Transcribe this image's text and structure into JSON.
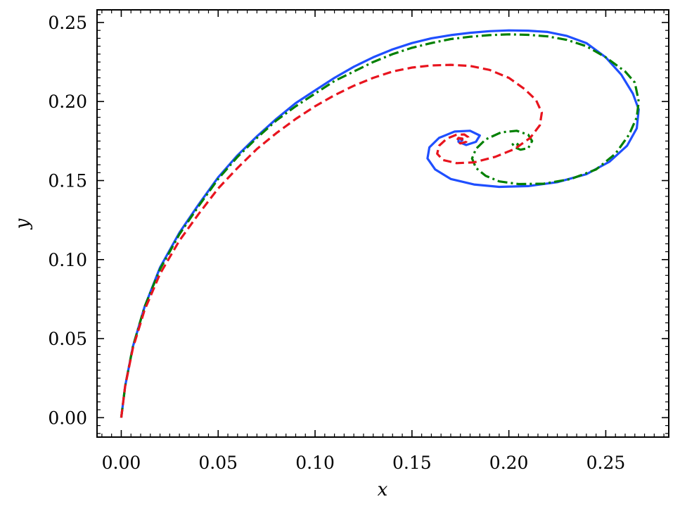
{
  "chart_data": {
    "type": "line",
    "title": "",
    "xlabel": "x",
    "ylabel": "y",
    "xlim": [
      -0.0125,
      0.2825
    ],
    "ylim": [
      -0.0123,
      0.258
    ],
    "x_ticks": [
      "0.00",
      "0.05",
      "0.10",
      "0.15",
      "0.20",
      "0.25"
    ],
    "y_ticks": [
      "0.00",
      "0.05",
      "0.10",
      "0.15",
      "0.20",
      "0.25"
    ],
    "grid": false,
    "legend": null,
    "series": [
      {
        "color": "#1f4fff",
        "linestyle": "solid",
        "x": [
          0.0,
          0.002,
          0.006,
          0.012,
          0.02,
          0.03,
          0.04,
          0.05,
          0.06,
          0.07,
          0.08,
          0.09,
          0.1,
          0.11,
          0.12,
          0.13,
          0.14,
          0.15,
          0.16,
          0.17,
          0.18,
          0.19,
          0.2,
          0.21,
          0.22,
          0.23,
          0.24,
          0.25,
          0.258,
          0.264,
          0.267,
          0.266,
          0.261,
          0.252,
          0.24,
          0.225,
          0.21,
          0.195,
          0.182,
          0.17,
          0.162,
          0.158,
          0.159,
          0.164,
          0.172,
          0.18,
          0.185,
          0.183,
          0.178,
          0.174,
          0.174,
          0.176,
          0.176,
          0.175
        ],
        "y": [
          0.0,
          0.02,
          0.045,
          0.07,
          0.095,
          0.117,
          0.135,
          0.152,
          0.166,
          0.178,
          0.189,
          0.199,
          0.207,
          0.215,
          0.222,
          0.228,
          0.233,
          0.237,
          0.24,
          0.242,
          0.2435,
          0.2445,
          0.245,
          0.2448,
          0.244,
          0.2415,
          0.237,
          0.228,
          0.217,
          0.205,
          0.195,
          0.183,
          0.172,
          0.162,
          0.154,
          0.149,
          0.1465,
          0.146,
          0.1475,
          0.151,
          0.157,
          0.164,
          0.171,
          0.177,
          0.181,
          0.1815,
          0.1785,
          0.1745,
          0.1725,
          0.1745,
          0.1765,
          0.1765,
          0.1755,
          0.175
        ]
      },
      {
        "color": "#008000",
        "linestyle": "dashdot",
        "x": [
          0.0,
          0.002,
          0.006,
          0.012,
          0.02,
          0.03,
          0.04,
          0.05,
          0.06,
          0.07,
          0.08,
          0.09,
          0.1,
          0.11,
          0.12,
          0.13,
          0.14,
          0.15,
          0.16,
          0.17,
          0.18,
          0.19,
          0.2,
          0.21,
          0.22,
          0.23,
          0.24,
          0.25,
          0.26,
          0.265,
          0.267,
          0.266,
          0.262,
          0.255,
          0.245,
          0.232,
          0.218,
          0.205,
          0.195,
          0.188,
          0.183,
          0.181,
          0.183,
          0.188,
          0.196,
          0.204,
          0.21,
          0.212,
          0.21,
          0.206,
          0.203,
          0.202,
          0.204,
          0.205,
          0.204
        ],
        "y": [
          0.0,
          0.02,
          0.045,
          0.07,
          0.094,
          0.116,
          0.134,
          0.151,
          0.165,
          0.177,
          0.188,
          0.197,
          0.205,
          0.213,
          0.219,
          0.225,
          0.23,
          0.234,
          0.237,
          0.2395,
          0.241,
          0.242,
          0.2425,
          0.2422,
          0.2412,
          0.239,
          0.235,
          0.228,
          0.219,
          0.212,
          0.2,
          0.19,
          0.179,
          0.167,
          0.157,
          0.151,
          0.148,
          0.1478,
          0.1495,
          0.153,
          0.158,
          0.164,
          0.17,
          0.176,
          0.1805,
          0.1815,
          0.179,
          0.175,
          0.1705,
          0.1695,
          0.171,
          0.173,
          0.1735,
          0.1725,
          0.172
        ]
      },
      {
        "color": "#e8141e",
        "linestyle": "dashed",
        "x": [
          0.0,
          0.002,
          0.006,
          0.012,
          0.02,
          0.03,
          0.04,
          0.05,
          0.06,
          0.07,
          0.08,
          0.09,
          0.1,
          0.11,
          0.12,
          0.13,
          0.14,
          0.15,
          0.16,
          0.17,
          0.18,
          0.19,
          0.2,
          0.208,
          0.214,
          0.217,
          0.216,
          0.211,
          0.203,
          0.193,
          0.182,
          0.173,
          0.166,
          0.163,
          0.164,
          0.168,
          0.173,
          0.177,
          0.179,
          0.178,
          0.175,
          0.173,
          0.174,
          0.176,
          0.175
        ],
        "y": [
          0.0,
          0.02,
          0.044,
          0.068,
          0.091,
          0.112,
          0.129,
          0.145,
          0.158,
          0.17,
          0.18,
          0.189,
          0.197,
          0.204,
          0.21,
          0.215,
          0.219,
          0.2215,
          0.2228,
          0.2232,
          0.2225,
          0.22,
          0.215,
          0.208,
          0.201,
          0.193,
          0.185,
          0.177,
          0.17,
          0.165,
          0.1615,
          0.161,
          0.163,
          0.167,
          0.172,
          0.1765,
          0.179,
          0.1792,
          0.1775,
          0.1745,
          0.1735,
          0.175,
          0.177,
          0.1765,
          0.175
        ]
      }
    ]
  }
}
